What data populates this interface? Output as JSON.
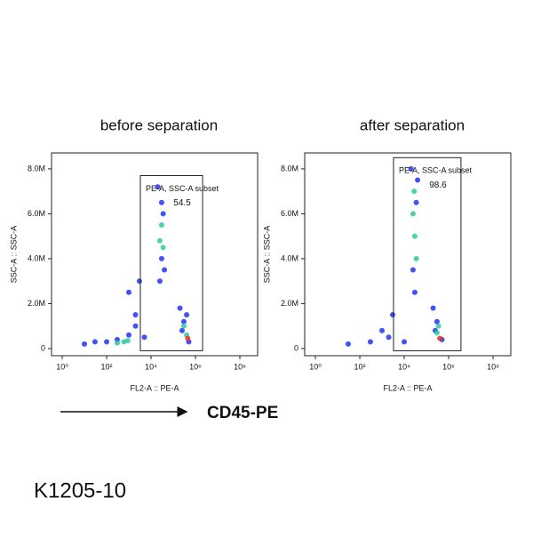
{
  "chart_data": [
    {
      "type": "scatter",
      "title": "before separation",
      "xlabel": "FL2-A :: PE-A",
      "ylabel": "SSC-A :: SSC-A",
      "xscale": "log",
      "xlim": [
        0.33,
        630000000
      ],
      "ylim": [
        -320000,
        8710000
      ],
      "xticks": [
        {
          "value": 1,
          "label": "10⁰"
        },
        {
          "value": 100,
          "label": "10²"
        },
        {
          "value": 10000,
          "label": "10⁴"
        },
        {
          "value": 1000000,
          "label": "10⁶"
        },
        {
          "value": 100000000,
          "label": "10⁸"
        }
      ],
      "yticks": [
        {
          "value": 0,
          "label": "0"
        },
        {
          "value": 2000000,
          "label": "2.0M"
        },
        {
          "value": 4000000,
          "label": "4.0M"
        },
        {
          "value": 6000000,
          "label": "6.0M"
        },
        {
          "value": 8000000,
          "label": "8.0M"
        }
      ],
      "gate": {
        "label": "PE-A, SSC-A subset",
        "value": 54.5,
        "xlim": [
          3300,
          2100000
        ],
        "ylim": [
          -100000,
          7700000
        ]
      },
      "series": [
        {
          "color": "#1f35f5",
          "x": [
            10,
            30,
            100,
            300,
            1000,
            2000,
            3000,
            1000,
            2000,
            20000,
            30000,
            40000,
            25000,
            35000,
            30000,
            200000,
            400000,
            300000,
            500000,
            250000,
            5000
          ],
          "y": [
            200000,
            300000,
            300000,
            400000,
            600000,
            1500000,
            3000000,
            2500000,
            1000000,
            7200000,
            6500000,
            3500000,
            3000000,
            6000000,
            4000000,
            1800000,
            1500000,
            1200000,
            300000,
            800000,
            500000
          ]
        },
        {
          "color": "#2fc9a0",
          "x": [
            300,
            600,
            900,
            30000,
            35000,
            25000,
            300000,
            400000
          ],
          "y": [
            250000,
            300000,
            350000,
            5500000,
            4500000,
            4800000,
            1000000,
            600000
          ]
        },
        {
          "color": "#e8321e",
          "x": [
            450000
          ],
          "y": [
            450000
          ]
        }
      ]
    },
    {
      "type": "scatter",
      "title": "after separation",
      "xlabel": "FL2-A :: PE-A",
      "ylabel": "SSC-A :: SSC-A",
      "xscale": "log",
      "xlim": [
        0.33,
        630000000
      ],
      "ylim": [
        -320000,
        8710000
      ],
      "xticks": [
        {
          "value": 1,
          "label": "10⁰"
        },
        {
          "value": 100,
          "label": "10²"
        },
        {
          "value": 10000,
          "label": "10⁴"
        },
        {
          "value": 1000000,
          "label": "10⁶"
        },
        {
          "value": 100000000,
          "label": "10⁸"
        }
      ],
      "yticks": [
        {
          "value": 0,
          "label": "0"
        },
        {
          "value": 2000000,
          "label": "2.0M"
        },
        {
          "value": 4000000,
          "label": "4.0M"
        },
        {
          "value": 6000000,
          "label": "6.0M"
        },
        {
          "value": 8000000,
          "label": "8.0M"
        }
      ],
      "gate": {
        "label": "PE-A, SSC-A subset",
        "value": 98.6,
        "xlim": [
          3300,
          3600000
        ],
        "ylim": [
          -100000,
          8500000
        ]
      },
      "series": [
        {
          "color": "#1f35f5",
          "x": [
            30,
            300,
            1000,
            3000,
            2000,
            20000,
            40000,
            30000,
            25000,
            35000,
            200000,
            500000,
            300000,
            250000,
            10000
          ],
          "y": [
            200000,
            300000,
            800000,
            1500000,
            500000,
            8000000,
            7500000,
            2500000,
            3500000,
            6500000,
            1800000,
            400000,
            1200000,
            800000,
            300000
          ]
        },
        {
          "color": "#2fc9a0",
          "x": [
            25000,
            30000,
            35000,
            28000,
            300000,
            350000
          ],
          "y": [
            6000000,
            5000000,
            4000000,
            7000000,
            700000,
            1000000
          ]
        },
        {
          "color": "#e8321e",
          "x": [
            400000
          ],
          "y": [
            450000
          ]
        }
      ]
    }
  ],
  "arrow_label": "CD45-PE",
  "caption": "K1205-10"
}
